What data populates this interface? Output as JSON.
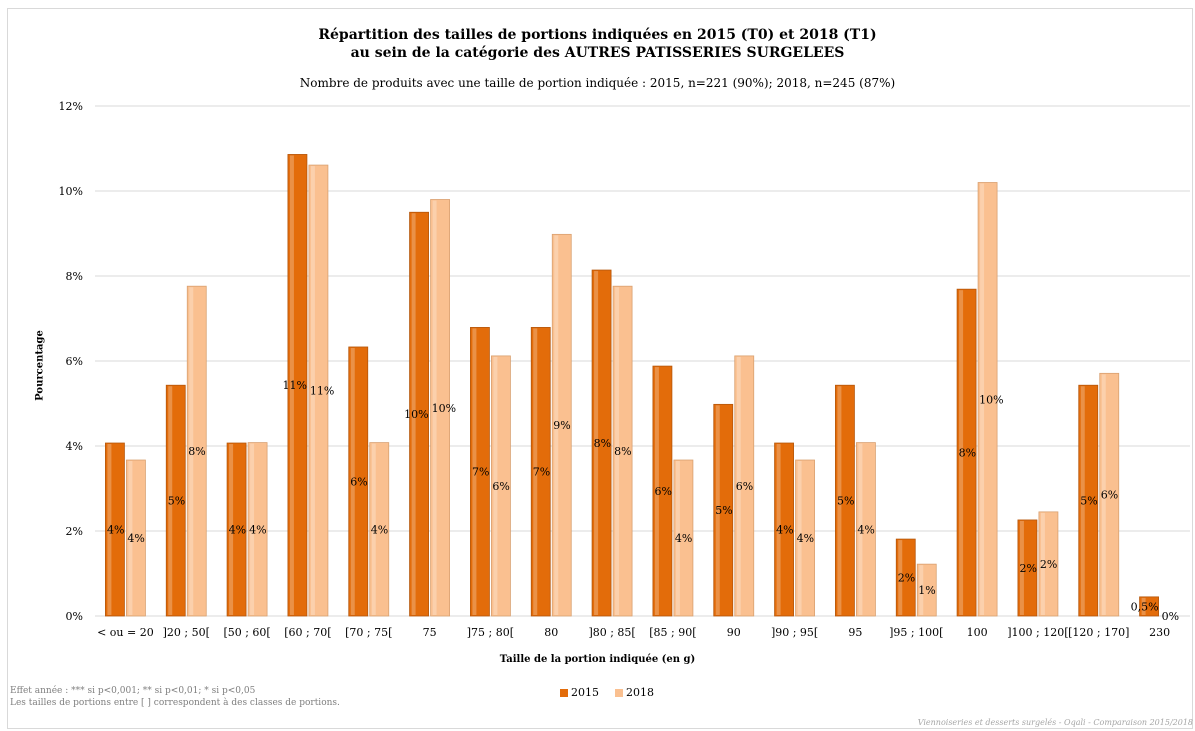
{
  "header": {
    "title_line1": "Répartition des tailles de portions indiquées en 2015 (T0) et 2018 (T1)",
    "title_line2": "au sein de la catégorie des AUTRES PATISSERIES SURGELEES",
    "subtitle": "Nombre de produits avec une taille de portion indiquée : 2015, n=221 (90%); 2018, n=245 (87%)"
  },
  "footer": {
    "note1": "Effet année : *** si p<0,001; ** si p<0,01; * si p<0,05",
    "note2": "Les tailles de portions entre [ ] correspondent à des classes de portions.",
    "source": "Viennoiseries et desserts surgelés - Oqali - Comparaison 2015/2018"
  },
  "colors": {
    "s2015": "#e36c0a",
    "s2018": "#fac090",
    "grid": "#d9d9d9"
  },
  "chart_data": {
    "type": "bar",
    "xlabel": "Taille de la portion indiquée (en g)",
    "ylabel": "Pourcentage",
    "ylim": [
      0,
      12
    ],
    "yticks": [
      "0%",
      "2%",
      "4%",
      "6%",
      "8%",
      "10%",
      "12%"
    ],
    "legend": "bottom",
    "grid": true,
    "categories": [
      "< ou = 20",
      "]20 ; 50[",
      "[50 ; 60[",
      "[60 ; 70[",
      "[70 ; 75[",
      "75",
      "]75 ; 80[",
      "80",
      "]80 ; 85[",
      "[85 ; 90[",
      "90",
      "]90 ; 95[",
      "95",
      "]95 ; 100[",
      "100",
      "]100 ; 120[",
      "[120 ; 170]",
      "230"
    ],
    "series": [
      {
        "name": "2015",
        "values": [
          4.07,
          5.43,
          4.07,
          10.86,
          6.33,
          9.5,
          6.79,
          6.79,
          8.14,
          5.88,
          4.98,
          4.07,
          5.43,
          1.81,
          7.69,
          2.26,
          5.43,
          0.45
        ],
        "labels": [
          "4%",
          "5%",
          "4%",
          "11%",
          "6%",
          "10%",
          "7%",
          "7%",
          "8%",
          "6%",
          "5%",
          "4%",
          "5%",
          "2%",
          "8%",
          "2%",
          "5%",
          "0,5%"
        ]
      },
      {
        "name": "2018",
        "values": [
          3.67,
          7.76,
          4.08,
          10.61,
          4.08,
          9.8,
          6.12,
          8.98,
          7.76,
          3.67,
          6.12,
          3.67,
          4.08,
          1.22,
          10.2,
          2.45,
          5.71,
          0
        ],
        "labels": [
          "4%",
          "8%",
          "4%",
          "11%",
          "4%",
          "10%",
          "6%",
          "9%",
          "8%",
          "4%",
          "6%",
          "4%",
          "4%",
          "1%",
          "10%",
          "2%",
          "6%",
          "0%"
        ]
      }
    ]
  }
}
